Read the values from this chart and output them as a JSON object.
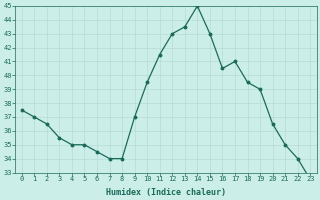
{
  "x": [
    0,
    1,
    2,
    3,
    4,
    5,
    6,
    7,
    8,
    9,
    10,
    11,
    12,
    13,
    14,
    15,
    16,
    17,
    18,
    19,
    20,
    21,
    22,
    23
  ],
  "y": [
    37.5,
    37.0,
    36.5,
    35.5,
    35.0,
    35.0,
    34.5,
    34.0,
    34.0,
    37.0,
    39.5,
    41.5,
    43.0,
    43.5,
    45.0,
    43.0,
    40.5,
    41.0,
    39.5,
    39.0,
    36.5,
    35.0,
    34.0,
    32.5
  ],
  "xlabel": "Humidex (Indice chaleur)",
  "ylim": [
    33,
    45
  ],
  "xlim_min": -0.5,
  "xlim_max": 23.5,
  "yticks": [
    33,
    34,
    35,
    36,
    37,
    38,
    39,
    40,
    41,
    42,
    43,
    44,
    45
  ],
  "xticks": [
    0,
    1,
    2,
    3,
    4,
    5,
    6,
    7,
    8,
    9,
    10,
    11,
    12,
    13,
    14,
    15,
    16,
    17,
    18,
    19,
    20,
    21,
    22,
    23
  ],
  "line_color": "#1a6b5a",
  "marker_color": "#1a6b5a",
  "bg_color": "#cceee8",
  "grid_color": "#b0d8d0",
  "label_color": "#1a6b5a",
  "tick_color": "#1a6b5a",
  "tick_fontsize": 5.0,
  "xlabel_fontsize": 6.0,
  "line_width": 0.9,
  "marker_size": 1.8
}
